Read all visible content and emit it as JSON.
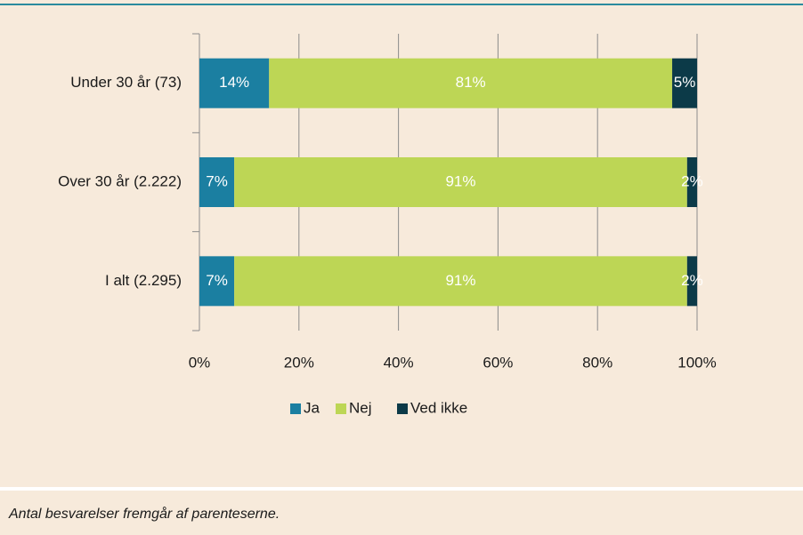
{
  "chart_data": {
    "type": "stacked_barh",
    "categories": [
      "Under 30 år (73)",
      "Over 30 år (2.222)",
      "I alt (2.295)"
    ],
    "series": [
      {
        "name": "Ja",
        "color": "#1b7fa1",
        "values": [
          14,
          7,
          7
        ],
        "value_labels": [
          "14%",
          "7%",
          "7%"
        ]
      },
      {
        "name": "Nej",
        "color": "#bdd655",
        "values": [
          81,
          91,
          91
        ],
        "value_labels": [
          "81%",
          "91%",
          "91%"
        ]
      },
      {
        "name": "Ved ikke",
        "color": "#0c3a48",
        "values": [
          5,
          2,
          2
        ],
        "value_labels": [
          "5%",
          "2%",
          "2%"
        ]
      }
    ],
    "xlim": [
      0,
      100
    ],
    "xticks": [
      {
        "value": 0,
        "label": "0%"
      },
      {
        "value": 20,
        "label": "20%"
      },
      {
        "value": 40,
        "label": "40%"
      },
      {
        "value": 60,
        "label": "60%"
      },
      {
        "value": 80,
        "label": "80%"
      },
      {
        "value": 100,
        "label": "100%"
      }
    ],
    "grid": true,
    "legend": "bottom",
    "note": "Antal besvarelser fremgår af parenteserne."
  }
}
